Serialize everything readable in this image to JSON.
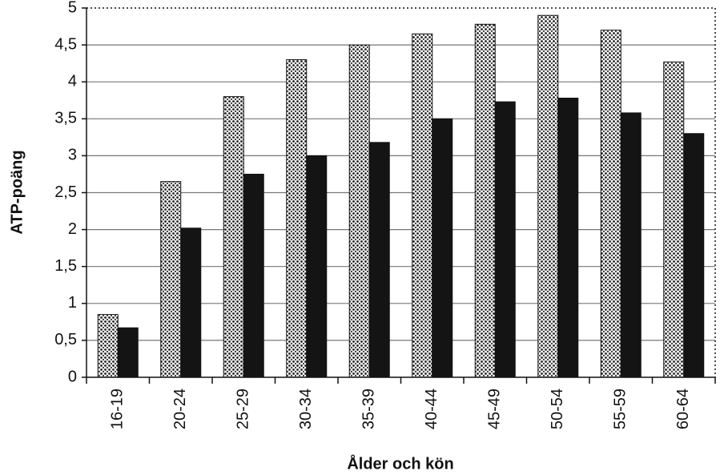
{
  "chart_data": {
    "type": "bar",
    "x_label": "Ålder och kön",
    "y_label": "ATP-poäng",
    "categories": [
      "16-19",
      "20-24",
      "25-29",
      "30-34",
      "35-39",
      "40-44",
      "45-49",
      "50-54",
      "55-59",
      "60-64"
    ],
    "series": [
      {
        "color": "#ffffff",
        "pattern": "dots",
        "values": [
          0.85,
          2.65,
          3.8,
          4.3,
          4.5,
          4.65,
          4.78,
          4.9,
          4.7,
          4.27
        ]
      },
      {
        "color": "#141414",
        "pattern": "solid",
        "values": [
          0.67,
          2.02,
          2.75,
          3.0,
          3.18,
          3.5,
          3.73,
          3.78,
          3.58,
          3.3
        ]
      }
    ],
    "ylim": [
      0,
      5
    ],
    "yticks": [
      0,
      {
        "value": 0.5,
        "label": "0,5"
      },
      1,
      {
        "value": 1.5,
        "label": "1,5"
      },
      2,
      {
        "value": 2.5,
        "label": "2,5"
      },
      3,
      {
        "value": 3.5,
        "label": "3,5"
      },
      4,
      {
        "value": 4.5,
        "label": "4,5"
      },
      5
    ],
    "grid": true
  }
}
